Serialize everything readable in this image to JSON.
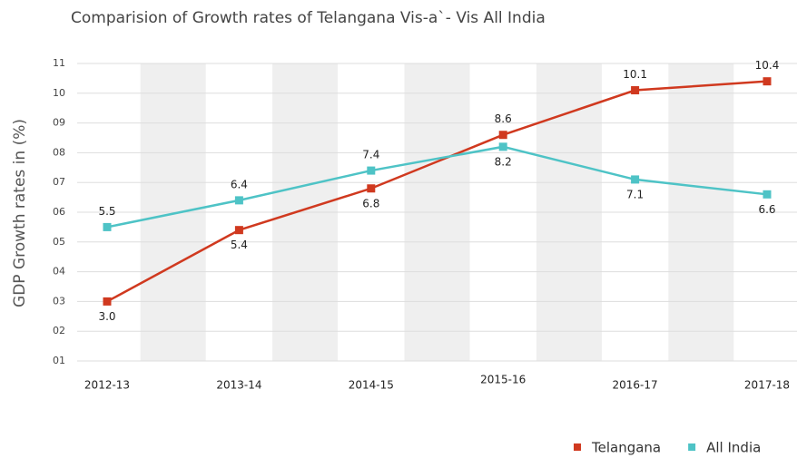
{
  "chart_data": {
    "type": "line",
    "title": "Comparision of Growth rates of Telangana Vis-a`- Vis All India",
    "y_label": "GDP Growth rates in (%)",
    "categories": [
      "2012-13",
      "2013-14",
      "2014-15",
      "2015-16",
      "2016-17",
      "2017-18"
    ],
    "series": [
      {
        "name": "Telangana",
        "color": "#d0391f",
        "values": [
          3.0,
          5.4,
          6.8,
          8.6,
          10.1,
          10.4
        ],
        "value_labels": [
          "3.0",
          "5.4",
          "6.8",
          "8.6",
          "10.1",
          "10.4"
        ]
      },
      {
        "name": "All India",
        "color": "#4ec3c6",
        "values": [
          5.5,
          6.4,
          7.4,
          8.2,
          7.1,
          6.6
        ]
      }
    ],
    "ylim": [
      1,
      11
    ],
    "yticks": [
      {
        "value": 1,
        "label": "01"
      },
      {
        "value": 2,
        "label": "02"
      },
      {
        "value": 3,
        "label": "03"
      },
      {
        "value": 4,
        "label": "04"
      },
      {
        "value": 5,
        "label": "05"
      },
      {
        "value": 6,
        "label": "06"
      },
      {
        "value": 7,
        "label": "07"
      },
      {
        "value": 8,
        "label": "08"
      },
      {
        "value": 9,
        "label": "09"
      },
      10,
      11
    ],
    "grid": true,
    "legend": "bottom-right"
  }
}
